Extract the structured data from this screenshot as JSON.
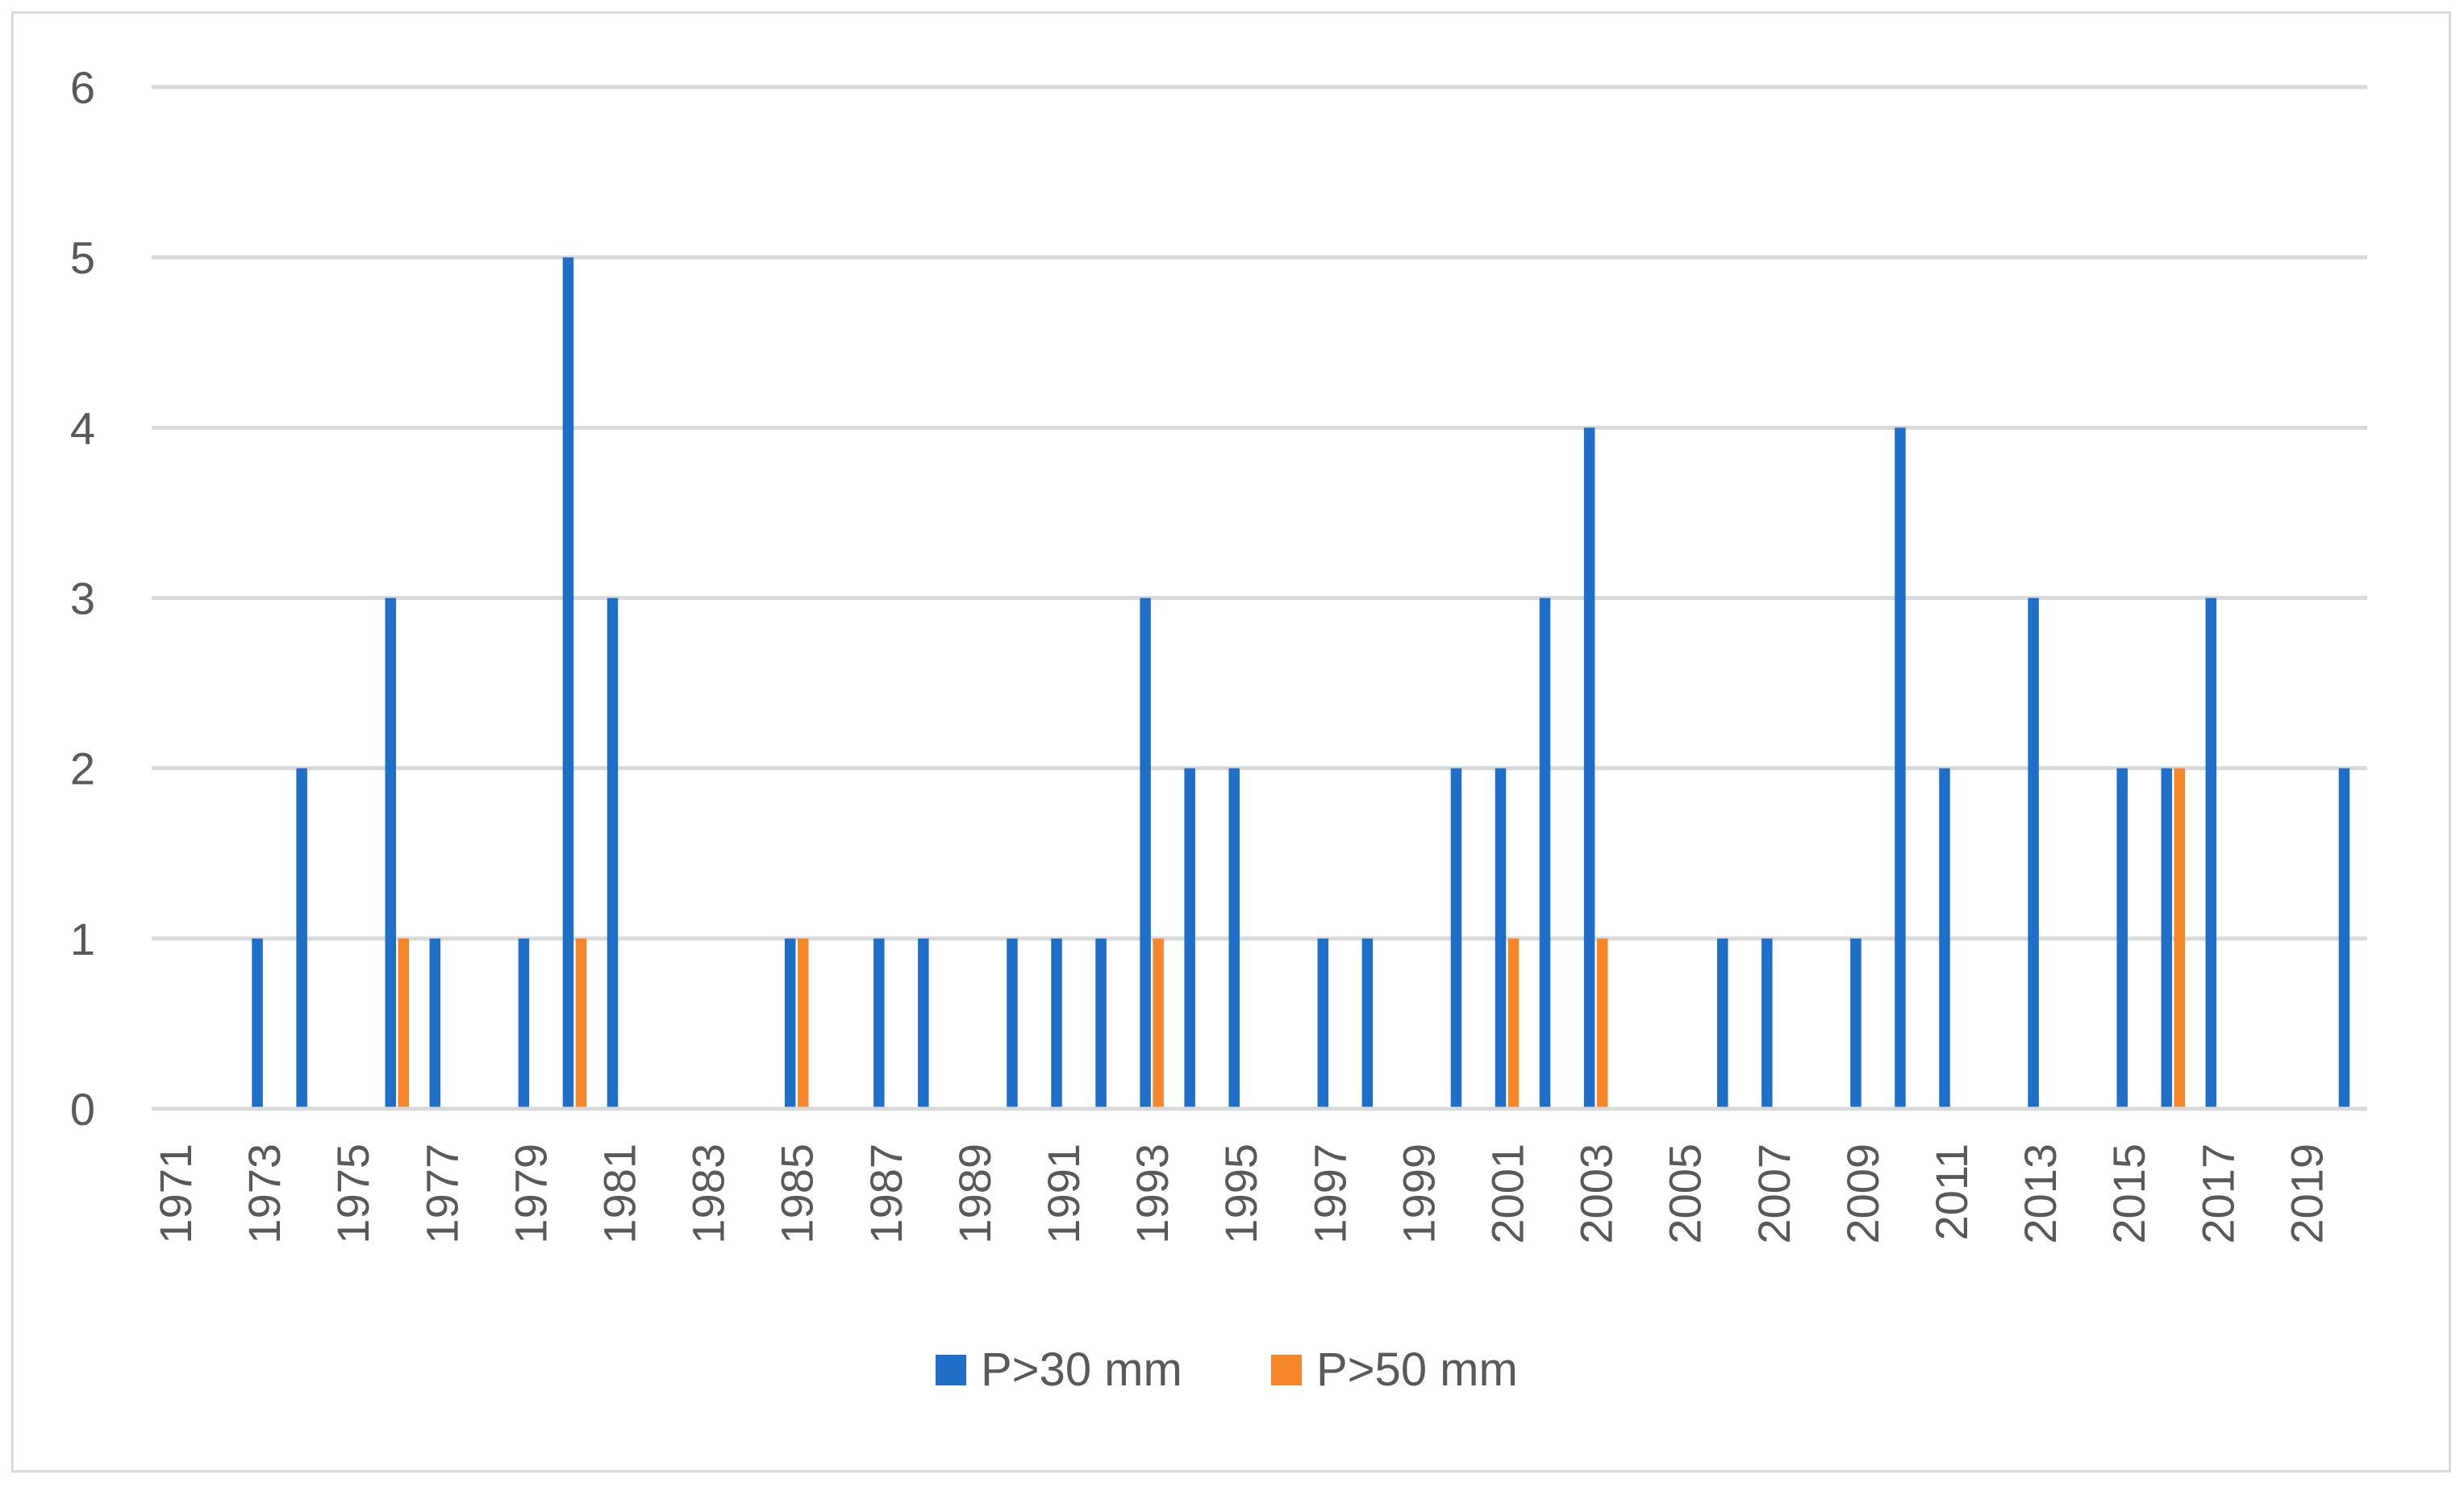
{
  "chart_data": {
    "type": "bar",
    "title": "",
    "xlabel": "",
    "ylabel": "",
    "ylim": [
      0,
      6
    ],
    "yticks": [
      "0",
      "1",
      "2",
      "3",
      "4",
      "5",
      "6"
    ],
    "grid": "horizontal",
    "legend_position": "bottom-center",
    "categories": [
      "1971",
      "1972",
      "1973",
      "1974",
      "1975",
      "1976",
      "1977",
      "1978",
      "1979",
      "1980",
      "1981",
      "1982",
      "1983",
      "1984",
      "1985",
      "1986",
      "1987",
      "1988",
      "1989",
      "1990",
      "1991",
      "1992",
      "1993",
      "1994",
      "1995",
      "1996",
      "1997",
      "1998",
      "1999",
      "2000",
      "2001",
      "2002",
      "2003",
      "2004",
      "2005",
      "2006",
      "2007",
      "2008",
      "2009",
      "2010",
      "2011",
      "2012",
      "2013",
      "2014",
      "2015",
      "2016",
      "2017",
      "2018",
      "2019",
      "2020"
    ],
    "tick_labels": [
      "1971",
      "1973",
      "1975",
      "1977",
      "1979",
      "1981",
      "1983",
      "1985",
      "1987",
      "1989",
      "1991",
      "1993",
      "1995",
      "1997",
      "1999",
      "2001",
      "2003",
      "2005",
      "2007",
      "2009",
      "2011",
      "2013",
      "2015",
      "2017",
      "2019"
    ],
    "series": [
      {
        "name": "P>30 mm",
        "color": "#1f6fc9",
        "values": [
          0,
          0,
          1,
          2,
          0,
          3,
          1,
          0,
          1,
          5,
          3,
          0,
          0,
          0,
          1,
          0,
          1,
          1,
          0,
          1,
          1,
          1,
          3,
          2,
          2,
          0,
          1,
          1,
          0,
          2,
          2,
          3,
          4,
          0,
          0,
          1,
          1,
          0,
          1,
          4,
          2,
          0,
          3,
          0,
          2,
          2,
          3,
          0,
          0,
          2
        ]
      },
      {
        "name": "P>50 mm",
        "color": "#f5862a",
        "values": [
          0,
          0,
          0,
          0,
          0,
          1,
          0,
          0,
          0,
          1,
          0,
          0,
          0,
          0,
          1,
          0,
          0,
          0,
          0,
          0,
          0,
          0,
          1,
          0,
          0,
          0,
          0,
          0,
          0,
          0,
          1,
          0,
          1,
          0,
          0,
          0,
          0,
          0,
          0,
          0,
          0,
          0,
          0,
          0,
          0,
          2,
          0,
          0,
          0,
          0
        ]
      }
    ]
  }
}
